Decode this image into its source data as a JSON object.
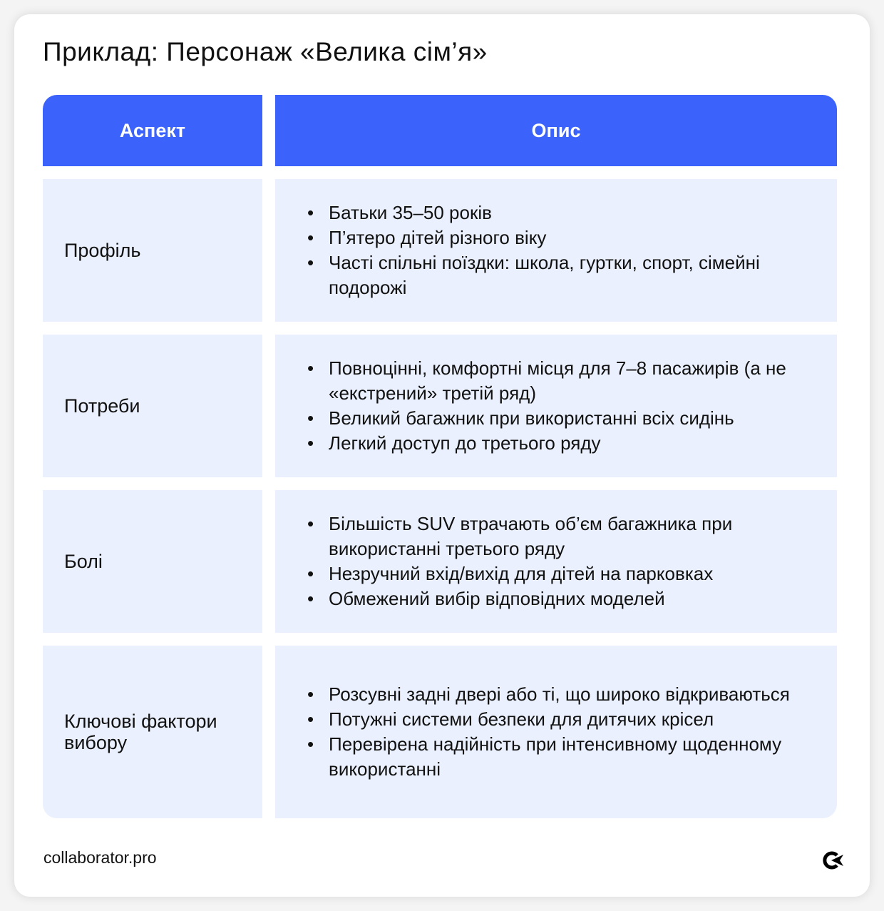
{
  "title": "Приклад: Персонаж «Велика сім’я»",
  "header": {
    "aspect": "Аспект",
    "description": "Опис"
  },
  "rows": [
    {
      "aspect": "Профіль",
      "items": [
        "Батьки 35–50 років",
        "П’ятеро дітей різного віку",
        "Часті спільні поїздки: школа, гуртки, спорт, сімейні подорожі"
      ]
    },
    {
      "aspect": "Потреби",
      "items": [
        "Повноцінні, комфортні місця для 7–8 пасажирів (а не «екстрений» третій ряд)",
        "Великий багажник при використанні всіх сидінь",
        "Легкий доступ до третього ряду"
      ]
    },
    {
      "aspect": "Болі",
      "items": [
        "Більшість SUV втрачають об’єм багажника при використанні третього ряду",
        "Незручний вхід/вихід для дітей на парковках",
        "Обмежений вибір відповідних моделей"
      ]
    },
    {
      "aspect": "Ключові фактори вибору",
      "items": [
        "Розсувні задні двері або ті, що широко відкриваються",
        "Потужні системи безпеки для дитячих крісел",
        "Перевірена надійність при інтенсивному щоденному використанні"
      ]
    }
  ],
  "footer": {
    "site": "collaborator.pro",
    "logo_icon": "collaborator-logo-icon"
  },
  "colors": {
    "header_bg": "#3b63fb",
    "row_bg": "#eaf0fd"
  }
}
